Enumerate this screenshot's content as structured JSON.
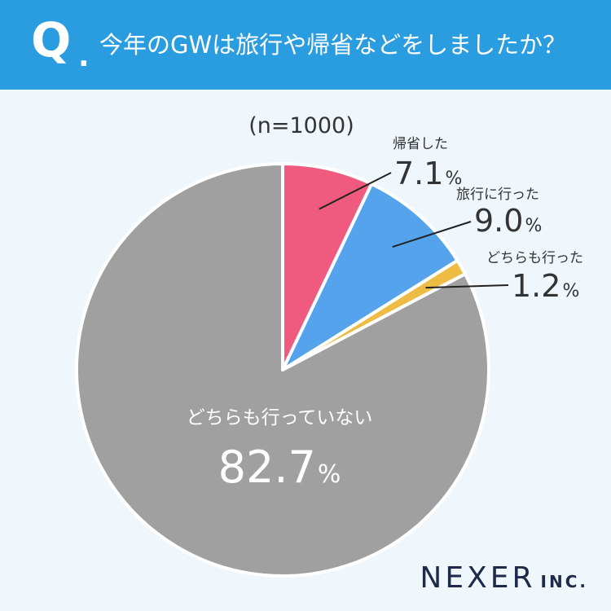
{
  "header": {
    "q_letter": "Q",
    "q_dot": ".",
    "question": "今年のGWは旅行や帰省などをしましたか？"
  },
  "logo": {
    "main": "NEXER",
    "inc": "INC."
  },
  "chart_data": {
    "type": "pie",
    "title": "",
    "note": "(n=1000)",
    "unit": "%",
    "series": [
      {
        "name": "帰省した",
        "value": 7.1,
        "value_text": "7.1",
        "color": "#f05a7e",
        "label_pos": "outside"
      },
      {
        "name": "旅行に行った",
        "value": 9.0,
        "value_text": "9.0",
        "color": "#55a3ec",
        "label_pos": "outside"
      },
      {
        "name": "どちらも行った",
        "value": 1.2,
        "value_text": "1.2",
        "color": "#eebb45",
        "label_pos": "outside"
      },
      {
        "name": "どちらも行っていない",
        "value": 82.7,
        "value_text": "82.7",
        "color": "#a0a0a0",
        "label_pos": "inside"
      }
    ],
    "start_angle": "12 o'clock",
    "direction": "clockwise",
    "legend": "none"
  }
}
